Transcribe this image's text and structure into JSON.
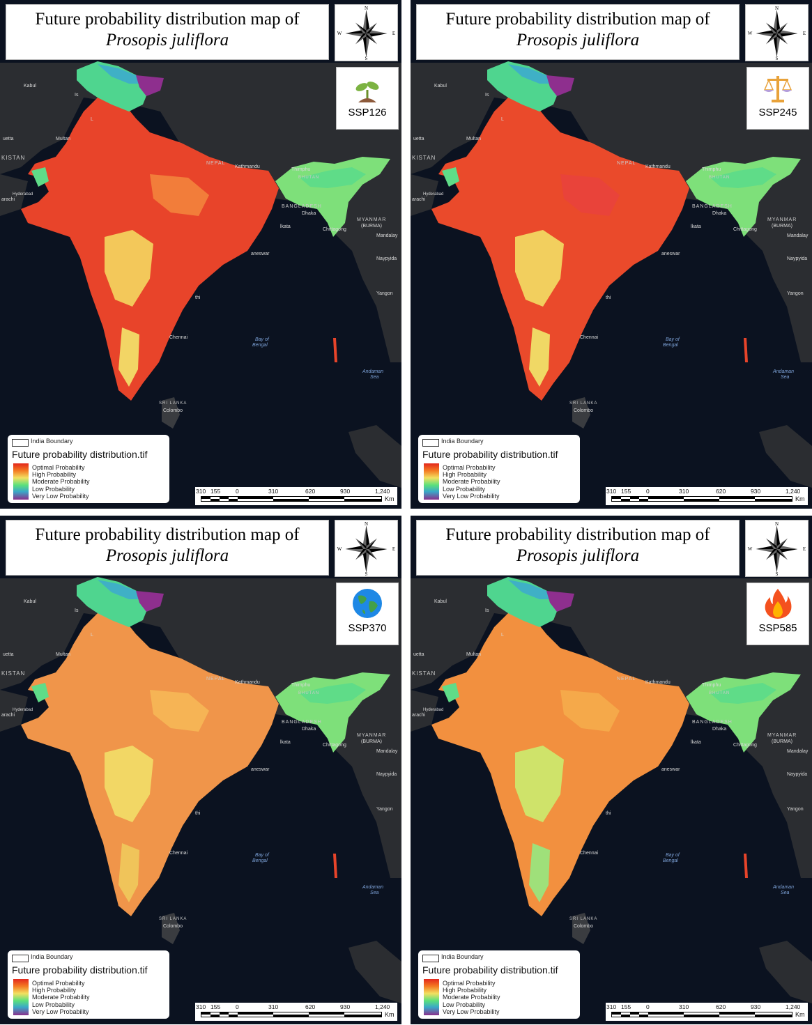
{
  "title": {
    "line1": "Future probability distribution map of",
    "line2": "Prosopis juliflora"
  },
  "compass": {
    "n": "N",
    "s": "S",
    "e": "E",
    "w": "W"
  },
  "panels": [
    {
      "scenario": "SSP126",
      "icon": "seedling-icon"
    },
    {
      "scenario": "SSP245",
      "icon": "scales-icon"
    },
    {
      "scenario": "SSP370",
      "icon": "earth-globe-icon"
    },
    {
      "scenario": "SSP585",
      "icon": "fire-icon"
    }
  ],
  "legend": {
    "boundary_label": "India Boundary",
    "raster_title": "Future probability distribution.tif",
    "classes": [
      "Optimal Probability",
      "High Probability",
      "Moderate Probability",
      "Low Probability",
      "Very Low Probability"
    ],
    "colors": {
      "optimal": "#e3271c",
      "high": "#f47a22",
      "moderate": "#5be07c",
      "low": "#3aa8c8",
      "very_low": "#8b2f8c"
    }
  },
  "scale": {
    "ticks": [
      "310",
      "155",
      "0",
      "310",
      "620",
      "930",
      "1,240"
    ],
    "unit": "Km"
  },
  "places": {
    "kabul": "Kabul",
    "islamabad": "Is",
    "lahore": "L",
    "multan": "Multan",
    "quetta": "uetta",
    "pakistan": "KISTAN",
    "hyderabad": "Hyderabad",
    "karachi": "arachi",
    "nepal": "NEPAL",
    "kathmandu": "Kathmandu",
    "thimphu": "Thimphu",
    "bhutan": "BHUTAN",
    "bangladesh": "BANGLADESH",
    "dhaka": "Dhaka",
    "kolkata": "lkata",
    "chittagong": "Chittagong",
    "myanmar": "MYANMAR",
    "burma": "(BURMA)",
    "mandalay": "Mandalay",
    "naypyidaw": "Naypyida",
    "bhubaneswar": "aneswar",
    "yangon": "Yangon",
    "visakhapatnam": "thi",
    "chennai": "Chennai",
    "bay1": "Bay of",
    "bay2": "Bengal",
    "andaman1": "Andaman",
    "andaman2": "Sea",
    "srilanka": "SRI LANKA",
    "colombo": "Colombo"
  }
}
